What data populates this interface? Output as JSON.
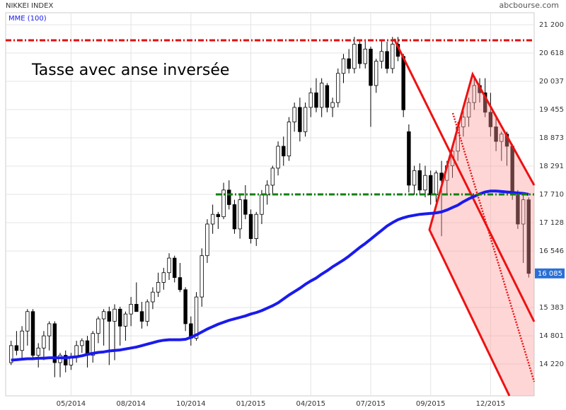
{
  "chart_data": {
    "type": "candlestick",
    "title": "NIKKEI INDEX",
    "source": "abcbourse.com",
    "annotation": "Tasse avec anse inversée",
    "last_price_label": {
      "value": 16085,
      "label": "16 085"
    },
    "categories": [
      null,
      null,
      null,
      null,
      null,
      null,
      null,
      null,
      null,
      null,
      null,
      "05/2014",
      null,
      null,
      null,
      null,
      null,
      null,
      null,
      null,
      null,
      null,
      "08/2014",
      null,
      null,
      null,
      null,
      null,
      null,
      null,
      null,
      null,
      null,
      "10/2014",
      null,
      null,
      null,
      null,
      null,
      null,
      null,
      null,
      null,
      null,
      "01/2015",
      null,
      null,
      null,
      null,
      null,
      null,
      null,
      null,
      null,
      null,
      "04/2015",
      null,
      null,
      null,
      null,
      null,
      null,
      null,
      null,
      null,
      null,
      "07/2015",
      null,
      null,
      null,
      null,
      null,
      null,
      null,
      null,
      null,
      null,
      "09/2015",
      null,
      null,
      null,
      null,
      null,
      null,
      null,
      null,
      null,
      null,
      "12/2015",
      null,
      null,
      null,
      null,
      null,
      null,
      null
    ],
    "ylim": [
      13566,
      21709
    ],
    "yticks": [
      {
        "value": 21200,
        "label": "21 200"
      },
      {
        "value": 20618,
        "label": "20 618"
      },
      {
        "value": 20037,
        "label": "20 037"
      },
      {
        "value": 19455,
        "label": "19 455"
      },
      {
        "value": 18873,
        "label": "18 873"
      },
      {
        "value": 18291,
        "label": "18 291"
      },
      {
        "value": 17710,
        "label": "17 710"
      },
      {
        "value": 17128,
        "label": "17 128"
      },
      {
        "value": 16546,
        "label": "16 546"
      },
      {
        "value": 15383,
        "label": "15 383"
      },
      {
        "value": 14801,
        "label": "14 801"
      },
      {
        "value": 14220,
        "label": "14 220"
      }
    ],
    "grid": true,
    "levels": [
      {
        "value": 20880,
        "color": "#e01010"
      },
      {
        "value": 17710,
        "color": "#108010"
      }
    ],
    "up_color": "#ffffff",
    "down_color": "#000000",
    "open": [
      14250,
      14600,
      14500,
      14900,
      15300,
      14400,
      14550,
      14800,
      15050,
      14250,
      14400,
      14200,
      14350,
      14600,
      14700,
      14400,
      14850,
      15150,
      15300,
      15100,
      15350,
      15000,
      15250,
      15450,
      15300,
      15100,
      15500,
      15700,
      15900,
      16100,
      16400,
      16000,
      15750,
      15050,
      14750,
      15600,
      16450,
      17100,
      17300,
      17250,
      17800,
      17500,
      17000,
      17600,
      17300,
      16800,
      17300,
      17700,
      17900,
      18250,
      18700,
      18500,
      19200,
      19500,
      19000,
      19500,
      19800,
      19500,
      19950,
      19500,
      19600,
      20200,
      20500,
      20300,
      20800,
      20400,
      20700,
      19950,
      20450,
      20650,
      20300,
      20800,
      20550,
      19000,
      17900,
      18200,
      17800,
      18100,
      17700,
      18150,
      18000,
      18300,
      18600,
      19100,
      19300,
      19600,
      19950,
      19800,
      19400,
      19100,
      18800,
      18950,
      18700,
      17700,
      17100,
      17600
    ],
    "high": [
      14700,
      14900,
      15000,
      15350,
      15350,
      14650,
      14900,
      15100,
      15100,
      14450,
      14500,
      14450,
      14700,
      14750,
      14800,
      14900,
      15200,
      15350,
      15400,
      15450,
      15400,
      15300,
      15600,
      15900,
      15500,
      15550,
      15800,
      16100,
      16200,
      16500,
      16450,
      16300,
      15800,
      15200,
      15700,
      16600,
      17200,
      17500,
      17350,
      17950,
      18000,
      17600,
      17700,
      17900,
      17400,
      17350,
      17800,
      18000,
      18300,
      18800,
      18900,
      19300,
      19600,
      19700,
      19600,
      19900,
      20100,
      20100,
      20000,
      19700,
      20300,
      20600,
      20700,
      20950,
      20900,
      20900,
      20750,
      20500,
      20900,
      20850,
      20950,
      20950,
      20600,
      19150,
      18300,
      18350,
      18300,
      18200,
      18200,
      18400,
      18400,
      18650,
      19200,
      19450,
      19700,
      20100,
      20100,
      20100,
      19800,
      19300,
      19000,
      19000,
      18750,
      17800,
      17750,
      17650
    ],
    "low": [
      14200,
      14400,
      14300,
      14600,
      14300,
      14150,
      14300,
      14500,
      13950,
      13950,
      14050,
      14100,
      14250,
      14450,
      14150,
      14250,
      14650,
      14600,
      14200,
      14300,
      14600,
      14700,
      15000,
      15300,
      14950,
      15000,
      15350,
      15600,
      15750,
      15950,
      15900,
      15700,
      14900,
      14600,
      14700,
      15400,
      16300,
      16900,
      17000,
      17200,
      17400,
      16900,
      16800,
      17200,
      16700,
      16650,
      17100,
      17500,
      17700,
      18100,
      18300,
      18400,
      19000,
      18800,
      18900,
      19300,
      19400,
      19300,
      19400,
      19300,
      19500,
      20000,
      20200,
      20200,
      20300,
      20300,
      19100,
      19800,
      20300,
      20200,
      20200,
      20450,
      19300,
      17750,
      17700,
      17700,
      17650,
      17500,
      17550,
      16850,
      17700,
      18050,
      18400,
      18900,
      19100,
      19450,
      19600,
      19300,
      18900,
      18600,
      18400,
      18300,
      17600,
      17000,
      16300,
      16000
    ],
    "close": [
      14600,
      14500,
      14900,
      15300,
      14400,
      14550,
      14800,
      15050,
      14250,
      14400,
      14200,
      14350,
      14600,
      14700,
      14400,
      14850,
      15150,
      15300,
      15100,
      15350,
      15000,
      15250,
      15450,
      15300,
      15100,
      15500,
      15700,
      15900,
      16100,
      16400,
      16000,
      15750,
      15050,
      14750,
      15600,
      16450,
      17100,
      17300,
      17250,
      17800,
      17500,
      17000,
      17600,
      17300,
      16800,
      17300,
      17700,
      17900,
      18250,
      18700,
      18500,
      19200,
      19500,
      19000,
      19500,
      19800,
      19500,
      20000,
      19500,
      19600,
      20200,
      20500,
      20300,
      20800,
      20400,
      20700,
      19950,
      20450,
      20650,
      20300,
      20800,
      20550,
      19450,
      17900,
      18200,
      17800,
      18100,
      17700,
      18150,
      18000,
      18300,
      18600,
      19100,
      19300,
      19600,
      19950,
      19800,
      19400,
      19100,
      18800,
      18950,
      18700,
      17700,
      17100,
      17600,
      16085
    ],
    "series": [
      {
        "name": "MME (100)",
        "color": "#1a1aee",
        "values": [
          14300,
          14310,
          14320,
          14330,
          14330,
          14340,
          14340,
          14350,
          14350,
          14350,
          14350,
          14360,
          14370,
          14390,
          14420,
          14440,
          14460,
          14470,
          14490,
          14500,
          14510,
          14530,
          14550,
          14570,
          14600,
          14630,
          14660,
          14690,
          14710,
          14720,
          14720,
          14720,
          14730,
          14770,
          14820,
          14880,
          14940,
          14990,
          15040,
          15080,
          15120,
          15150,
          15180,
          15210,
          15250,
          15280,
          15320,
          15370,
          15420,
          15480,
          15560,
          15640,
          15710,
          15780,
          15860,
          15930,
          15990,
          16070,
          16140,
          16220,
          16290,
          16360,
          16440,
          16530,
          16620,
          16700,
          16790,
          16880,
          16970,
          17060,
          17130,
          17190,
          17230,
          17260,
          17280,
          17300,
          17310,
          17320,
          17330,
          17350,
          17390,
          17440,
          17490,
          17560,
          17620,
          17670,
          17720,
          17760,
          17780,
          17780,
          17770,
          17760,
          17750,
          17740,
          17730,
          17710
        ]
      }
    ]
  }
}
